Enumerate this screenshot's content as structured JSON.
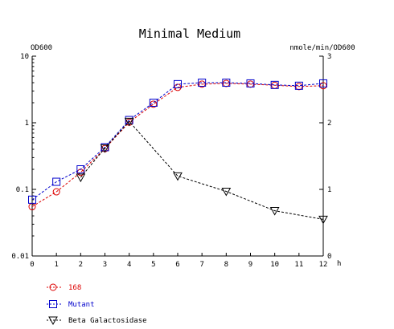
{
  "chart_data": {
    "type": "line",
    "title": "Minimal Medium",
    "xlabel": "h",
    "ylabel_left": "OD600",
    "ylabel_right": "nmole/min/OD600",
    "x": [
      0,
      1,
      2,
      3,
      4,
      5,
      6,
      7,
      8,
      9,
      10,
      11,
      12
    ],
    "x_tick_labels": [
      "0",
      "1",
      "2",
      "3",
      "4",
      "5",
      "6",
      "7",
      "8",
      "9",
      "10",
      "11",
      "12"
    ],
    "xlim": [
      0,
      12
    ],
    "y_left_scale": "log",
    "y_left_lim": [
      0.01,
      10
    ],
    "y_left_tick_labels": [
      "10",
      "1",
      "0.1",
      "0.01"
    ],
    "y_right_lim": [
      0,
      3
    ],
    "y_right_tick_labels": [
      "3",
      "2",
      "1",
      "0"
    ],
    "grid": false,
    "legend_position": "bottom-left",
    "series": [
      {
        "name": "168",
        "axis": "left",
        "color": "#dd0000",
        "marker": "circle",
        "line_style": "dashed",
        "x": [
          0,
          1,
          2,
          3,
          4,
          5,
          6,
          7,
          8,
          9,
          10,
          11,
          12
        ],
        "values": [
          0.055,
          0.092,
          0.18,
          0.41,
          1.02,
          1.9,
          3.4,
          3.8,
          3.9,
          3.8,
          3.65,
          3.5,
          3.6
        ]
      },
      {
        "name": "Mutant",
        "axis": "left",
        "color": "#0000cc",
        "marker": "square",
        "line_style": "dashed",
        "x": [
          0,
          1,
          2,
          3,
          4,
          5,
          6,
          7,
          8,
          9,
          10,
          11,
          12
        ],
        "values": [
          0.07,
          0.13,
          0.2,
          0.43,
          1.1,
          2.0,
          3.8,
          4.0,
          4.0,
          3.9,
          3.7,
          3.6,
          3.9
        ]
      },
      {
        "name": "Beta Galactosidase",
        "axis": "right",
        "color": "#000000",
        "marker": "triangle-down",
        "line_style": "dashed",
        "x": [
          2,
          3,
          4,
          6,
          8,
          10,
          12
        ],
        "values": [
          1.18,
          1.62,
          2.02,
          1.2,
          0.97,
          0.68,
          0.55
        ]
      }
    ]
  }
}
